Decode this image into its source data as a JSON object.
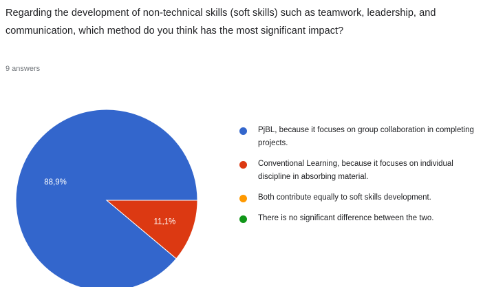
{
  "question": "Regarding the development of non-technical skills (soft skills) such as teamwork, leadership, and communication, which method do you think has the most significant impact?",
  "answers_count": "9 answers",
  "colors": {
    "blue": "#3366cc",
    "red": "#dc3912",
    "orange": "#ff9900",
    "green": "#109618"
  },
  "chart_data": {
    "type": "pie",
    "title": "",
    "slices": [
      {
        "label": "PjBL, because it focuses on group collaboration in completing projects.",
        "value": 88.9,
        "display": "88,9%",
        "color": "#3366cc"
      },
      {
        "label": "Conventional Learning, because it focuses on individual discipline in absorbing material.",
        "value": 11.1,
        "display": "11,1%",
        "color": "#dc3912"
      },
      {
        "label": "Both contribute equally to soft skills development.",
        "value": 0,
        "display": "",
        "color": "#ff9900"
      },
      {
        "label": "There is no significant difference between the two.",
        "value": 0,
        "display": "",
        "color": "#109618"
      }
    ],
    "legend_position": "right"
  }
}
